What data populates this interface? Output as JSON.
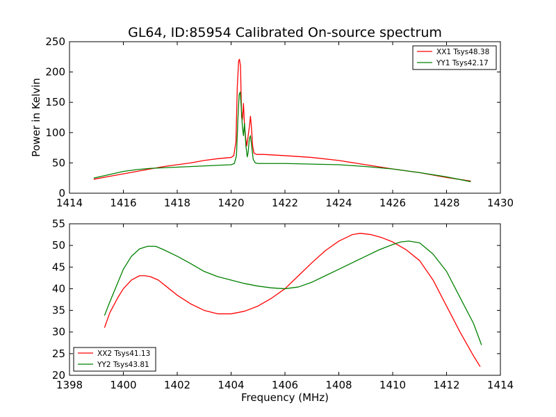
{
  "chart_data": [
    {
      "type": "line",
      "title": "GL64, ID:85954 Calibrated On-source spectrum",
      "xlabel": "",
      "ylabel": "Power in Kelvin",
      "xlim": [
        1414,
        1430
      ],
      "ylim": [
        0,
        250
      ],
      "xticks": [
        "1414",
        "1416",
        "1418",
        "1420",
        "1422",
        "1424",
        "1426",
        "1428",
        "1430"
      ],
      "yticks": [
        "0",
        "50",
        "100",
        "150",
        "200",
        "250"
      ],
      "legend_position": "top-right",
      "grid": false,
      "series": [
        {
          "name": "XX1 Tsys48.38",
          "color": "#ff0000",
          "points": [
            [
              1414.9,
              23
            ],
            [
              1415.5,
              28
            ],
            [
              1416,
              32
            ],
            [
              1416.5,
              36
            ],
            [
              1417,
              40
            ],
            [
              1417.5,
              44
            ],
            [
              1418,
              47
            ],
            [
              1418.5,
              50
            ],
            [
              1419,
              54
            ],
            [
              1419.5,
              57
            ],
            [
              1420,
              59
            ],
            [
              1420.1,
              62
            ],
            [
              1420.18,
              85
            ],
            [
              1420.23,
              175
            ],
            [
              1420.28,
              218
            ],
            [
              1420.31,
              221
            ],
            [
              1420.35,
              210
            ],
            [
              1420.39,
              125
            ],
            [
              1420.42,
              122
            ],
            [
              1420.46,
              148
            ],
            [
              1420.5,
              110
            ],
            [
              1420.54,
              92
            ],
            [
              1420.58,
              78
            ],
            [
              1420.62,
              90
            ],
            [
              1420.68,
              110
            ],
            [
              1420.72,
              127
            ],
            [
              1420.76,
              106
            ],
            [
              1420.8,
              78
            ],
            [
              1420.85,
              66
            ],
            [
              1420.95,
              64
            ],
            [
              1421.2,
              64
            ],
            [
              1422,
              62
            ],
            [
              1423,
              59
            ],
            [
              1424,
              54
            ],
            [
              1425,
              47
            ],
            [
              1426,
              40
            ],
            [
              1427,
              34
            ],
            [
              1428,
              26
            ],
            [
              1428.9,
              20
            ]
          ]
        },
        {
          "name": "YY1 Tsys42.17",
          "color": "#008000",
          "points": [
            [
              1414.9,
              25
            ],
            [
              1415.5,
              31
            ],
            [
              1416,
              36
            ],
            [
              1416.5,
              39
            ],
            [
              1417,
              41
            ],
            [
              1417.5,
              42
            ],
            [
              1418,
              43
            ],
            [
              1418.5,
              44
            ],
            [
              1419,
              45
            ],
            [
              1419.5,
              46
            ],
            [
              1420,
              47
            ],
            [
              1420.12,
              49
            ],
            [
              1420.2,
              62
            ],
            [
              1420.25,
              120
            ],
            [
              1420.3,
              163
            ],
            [
              1420.34,
              167
            ],
            [
              1420.38,
              140
            ],
            [
              1420.42,
              110
            ],
            [
              1420.46,
              95
            ],
            [
              1420.5,
              115
            ],
            [
              1420.55,
              78
            ],
            [
              1420.6,
              60
            ],
            [
              1420.63,
              66
            ],
            [
              1420.68,
              90
            ],
            [
              1420.72,
              95
            ],
            [
              1420.76,
              80
            ],
            [
              1420.82,
              56
            ],
            [
              1420.9,
              50
            ],
            [
              1421,
              49
            ],
            [
              1422,
              49
            ],
            [
              1423,
              48
            ],
            [
              1424,
              47
            ],
            [
              1425,
              44
            ],
            [
              1426,
              40
            ],
            [
              1427,
              34
            ],
            [
              1428,
              27
            ],
            [
              1428.9,
              19
            ]
          ]
        }
      ]
    },
    {
      "type": "line",
      "title": "",
      "xlabel": "Frequency (MHz)",
      "ylabel": "",
      "xlim": [
        1398,
        1414
      ],
      "ylim": [
        20,
        55
      ],
      "xticks": [
        "1398",
        "1400",
        "1402",
        "1404",
        "1406",
        "1408",
        "1410",
        "1412",
        "1414"
      ],
      "yticks": [
        "20",
        "25",
        "30",
        "35",
        "40",
        "45",
        "50",
        "55"
      ],
      "legend_position": "bottom-left",
      "grid": false,
      "series": [
        {
          "name": "XX2 Tsys41.13",
          "color": "#ff0000",
          "points": [
            [
              1399.3,
              31
            ],
            [
              1399.5,
              34.5
            ],
            [
              1399.8,
              38
            ],
            [
              1400,
              40
            ],
            [
              1400.3,
              42
            ],
            [
              1400.6,
              43
            ],
            [
              1400.8,
              43
            ],
            [
              1401,
              42.8
            ],
            [
              1401.3,
              42
            ],
            [
              1401.6,
              40.5
            ],
            [
              1402,
              38.5
            ],
            [
              1402.5,
              36.5
            ],
            [
              1403,
              35
            ],
            [
              1403.5,
              34.2
            ],
            [
              1404,
              34.2
            ],
            [
              1404.5,
              34.8
            ],
            [
              1405,
              36
            ],
            [
              1405.5,
              37.8
            ],
            [
              1406,
              40
            ],
            [
              1406.5,
              43
            ],
            [
              1407,
              46
            ],
            [
              1407.5,
              48.8
            ],
            [
              1408,
              51
            ],
            [
              1408.5,
              52.5
            ],
            [
              1408.8,
              52.8
            ],
            [
              1409.2,
              52.5
            ],
            [
              1409.6,
              51.8
            ],
            [
              1410,
              50.8
            ],
            [
              1410.5,
              49
            ],
            [
              1411,
              46.5
            ],
            [
              1411.5,
              42
            ],
            [
              1412,
              36
            ],
            [
              1412.5,
              30
            ],
            [
              1413,
              24.5
            ],
            [
              1413.25,
              22
            ]
          ]
        },
        {
          "name": "YY2 Tsys43.81",
          "color": "#008000",
          "points": [
            [
              1399.3,
              33.8
            ],
            [
              1399.5,
              37
            ],
            [
              1399.8,
              41.5
            ],
            [
              1400,
              44.5
            ],
            [
              1400.3,
              47.5
            ],
            [
              1400.6,
              49.2
            ],
            [
              1400.9,
              49.8
            ],
            [
              1401.2,
              49.8
            ],
            [
              1401.5,
              49
            ],
            [
              1402,
              47.5
            ],
            [
              1402.5,
              45.8
            ],
            [
              1403,
              44
            ],
            [
              1403.5,
              42.8
            ],
            [
              1404,
              42
            ],
            [
              1404.5,
              41.2
            ],
            [
              1405,
              40.6
            ],
            [
              1405.5,
              40.2
            ],
            [
              1406,
              40
            ],
            [
              1406.5,
              40.4
            ],
            [
              1407,
              41.5
            ],
            [
              1407.5,
              43
            ],
            [
              1408,
              44.5
            ],
            [
              1408.5,
              46
            ],
            [
              1409,
              47.5
            ],
            [
              1409.5,
              49
            ],
            [
              1410,
              50.2
            ],
            [
              1410.3,
              50.8
            ],
            [
              1410.6,
              51
            ],
            [
              1411,
              50.6
            ],
            [
              1411.5,
              48
            ],
            [
              1412,
              44
            ],
            [
              1412.5,
              38
            ],
            [
              1413,
              32
            ],
            [
              1413.3,
              27
            ]
          ]
        }
      ]
    }
  ]
}
